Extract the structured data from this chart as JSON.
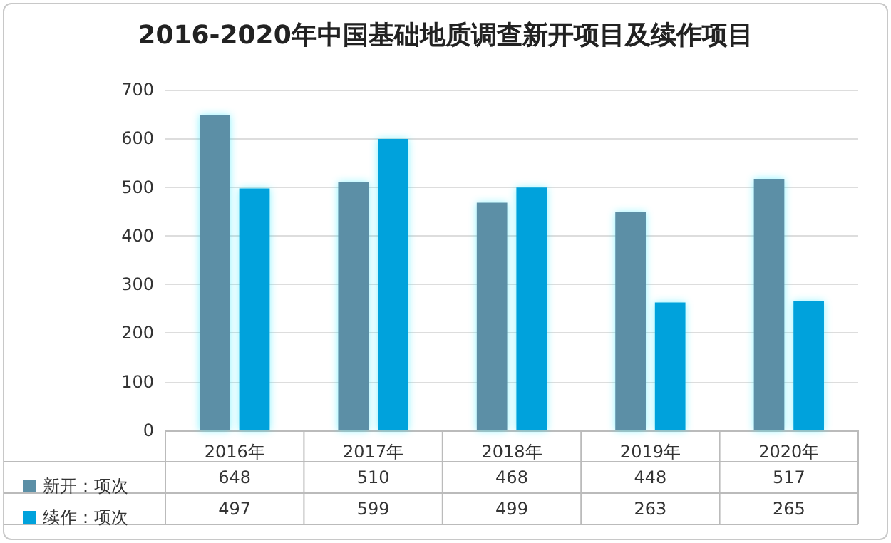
{
  "chart_data": {
    "type": "bar",
    "title": "2016-2020年中国基础地质调查新开项目及续作项目",
    "categories": [
      "2016年",
      "2017年",
      "2018年",
      "2019年",
      "2020年"
    ],
    "series": [
      {
        "name": "新开：项次",
        "color": "#5b8fa6",
        "values": [
          648,
          510,
          468,
          448,
          517
        ]
      },
      {
        "name": "续作：项次",
        "color": "#00a2dc",
        "values": [
          497,
          599,
          499,
          263,
          265
        ]
      }
    ],
    "ylim": [
      0,
      700
    ],
    "yticks": [
      0,
      100,
      200,
      300,
      400,
      500,
      600,
      700
    ],
    "grid": "y",
    "legend": "bottom",
    "data_labels": true
  }
}
